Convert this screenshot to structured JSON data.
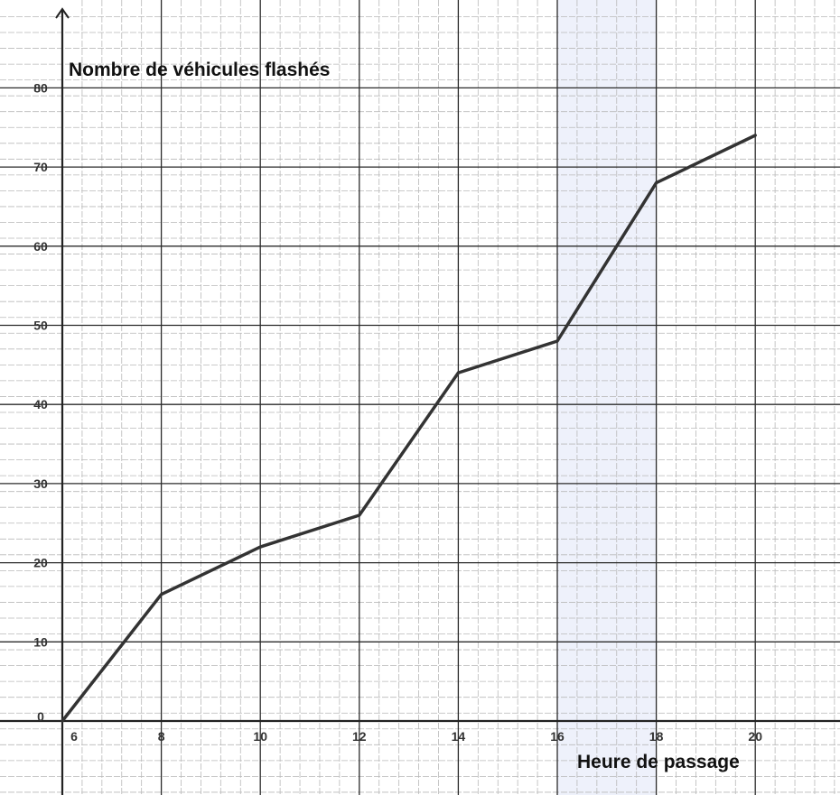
{
  "chart_data": {
    "type": "line",
    "ylabel": "Nombre de véhicules flashés",
    "xlabel": "Heure de passage",
    "x": [
      6,
      8,
      10,
      12,
      14,
      16,
      18,
      20
    ],
    "series": [
      {
        "values": [
          0,
          16,
          22,
          26,
          44,
          48,
          68,
          74
        ]
      }
    ],
    "x_ticks": [
      6,
      8,
      10,
      12,
      14,
      16,
      18,
      20
    ],
    "y_ticks": [
      0,
      10,
      20,
      30,
      40,
      50,
      60,
      70,
      80
    ],
    "xlim": [
      6,
      21.5
    ],
    "ylim": [
      -9,
      89
    ],
    "grid": true,
    "highlight_band": {
      "x_range": [
        16,
        18
      ],
      "color": "#eef1fb"
    },
    "colors": {
      "line": "#333333",
      "grid_major": "#2b2b2b",
      "grid_minor": "#b9b9b9"
    }
  }
}
